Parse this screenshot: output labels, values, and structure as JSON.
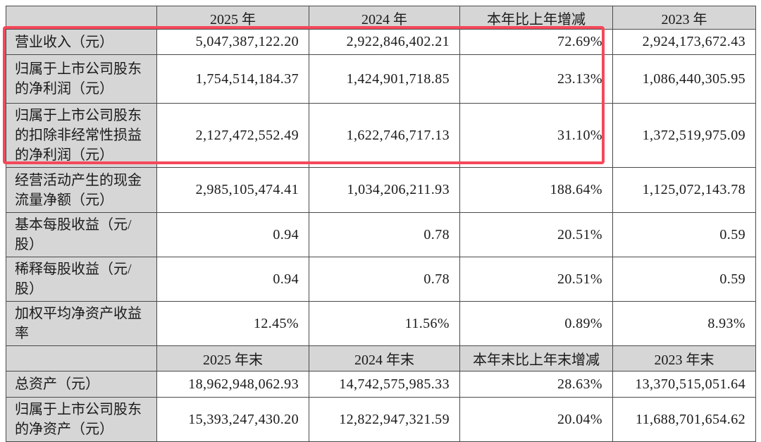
{
  "colors": {
    "highlight_red": "#f5485a",
    "header_gray": "#d6d6d6",
    "border_gray": "#4a4a4a",
    "text_black": "#1a1a1a"
  },
  "table": {
    "current_period": {
      "headers": {
        "blank": "",
        "y2025": "2025 年",
        "y2024": "2024 年",
        "change": "本年比上年增减",
        "y2023": "2023 年"
      },
      "rows": [
        {
          "label": "营业收入（元）",
          "y2025": "5,047,387,122.20",
          "y2024": "2,922,846,402.21",
          "change": "72.69%",
          "y2023": "2,924,173,672.43"
        },
        {
          "label": "归属于上市公司股东的净利润（元）",
          "y2025": "1,754,514,184.37",
          "y2024": "1,424,901,718.85",
          "change": "23.13%",
          "y2023": "1,086,440,305.95"
        },
        {
          "label": "归属于上市公司股东的扣除非经常性损益的净利润（元）",
          "y2025": "2,127,472,552.49",
          "y2024": "1,622,746,717.13",
          "change": "31.10%",
          "y2023": "1,372,519,975.09"
        },
        {
          "label": "经营活动产生的现金流量净额（元）",
          "y2025": "2,985,105,474.41",
          "y2024": "1,034,206,211.93",
          "change": "188.64%",
          "y2023": "1,125,072,143.78"
        },
        {
          "label": "基本每股收益（元/股）",
          "y2025": "0.94",
          "y2024": "0.78",
          "change": "20.51%",
          "y2023": "0.59"
        },
        {
          "label": "稀释每股收益（元/股）",
          "y2025": "0.94",
          "y2024": "0.78",
          "change": "20.51%",
          "y2023": "0.59"
        },
        {
          "label": "加权平均净资产收益率",
          "y2025": "12.45%",
          "y2024": "11.56%",
          "change": "0.89%",
          "y2023": "8.93%"
        }
      ]
    },
    "period_end": {
      "headers": {
        "blank": "",
        "y2025": "2025 年末",
        "y2024": "2024 年末",
        "change": "本年末比上年末增减",
        "y2023": "2023 年末"
      },
      "rows": [
        {
          "label": "总资产（元）",
          "y2025": "18,962,948,062.93",
          "y2024": "14,742,575,985.33",
          "change": "28.63%",
          "y2023": "13,370,515,051.64"
        },
        {
          "label": "归属于上市公司股东的净资产（元）",
          "y2025": "15,393,247,430.20",
          "y2024": "12,822,947,321.59",
          "change": "20.04%",
          "y2023": "11,688,701,654.62"
        }
      ]
    }
  }
}
